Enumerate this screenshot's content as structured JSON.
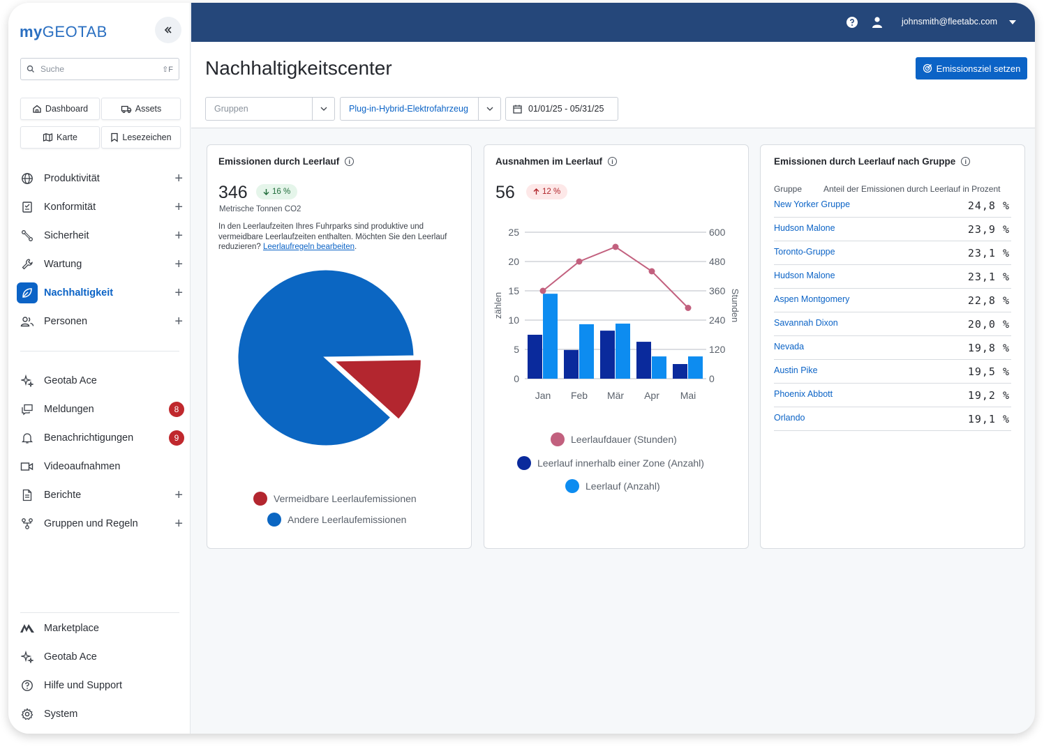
{
  "app": {
    "logo_my": "my",
    "logo_geotab": "GEOTAB",
    "search_placeholder": "Suche",
    "search_shortcut": "⇧F",
    "user_email": "johnsmith@fleetabc.com"
  },
  "quick_links": [
    {
      "label": "Dashboard",
      "icon": "home-icon"
    },
    {
      "label": "Assets",
      "icon": "truck-icon"
    },
    {
      "label": "Karte",
      "icon": "map-icon"
    },
    {
      "label": "Lesezeichen",
      "icon": "bookmark-icon"
    }
  ],
  "nav": {
    "main": [
      {
        "label": "Produktivität",
        "icon": "globe-icon",
        "expandable": true
      },
      {
        "label": "Konformität",
        "icon": "clipboard-icon",
        "expandable": true
      },
      {
        "label": "Sicherheit",
        "icon": "route-icon",
        "expandable": true
      },
      {
        "label": "Wartung",
        "icon": "wrench-icon",
        "expandable": true
      },
      {
        "label": "Nachhaltigkeit",
        "icon": "leaf-icon",
        "expandable": true,
        "active": true
      },
      {
        "label": "Personen",
        "icon": "people-icon",
        "expandable": true
      }
    ],
    "secondary": [
      {
        "label": "Geotab Ace",
        "icon": "sparkle-icon"
      },
      {
        "label": "Meldungen",
        "icon": "messages-icon",
        "badge": "8"
      },
      {
        "label": "Benachrichtigungen",
        "icon": "bell-icon",
        "badge": "9"
      },
      {
        "label": "Videoaufnahmen",
        "icon": "video-icon"
      },
      {
        "label": "Berichte",
        "icon": "document-icon",
        "expandable": true
      },
      {
        "label": "Gruppen und Regeln",
        "icon": "groups-icon",
        "expandable": true
      }
    ],
    "footer": [
      {
        "label": "Marketplace",
        "icon": "marketplace-icon"
      },
      {
        "label": "Geotab Ace",
        "icon": "sparkle-icon"
      },
      {
        "label": "Hilfe und Support",
        "icon": "help-icon"
      },
      {
        "label": "System",
        "icon": "gear-icon"
      }
    ]
  },
  "page": {
    "title": "Nachhaltigkeitscenter",
    "primary_button": "Emissionsziel setzen",
    "filters": {
      "groups_placeholder": "Gruppen",
      "vehicle_type": "Plug-in-Hybrid-Elektrofahrzeug",
      "date_range": "01/01/25 - 05/31/25"
    }
  },
  "cards": {
    "emissions": {
      "title": "Emissionen durch Leerlauf",
      "value": "346",
      "change": "16 %",
      "change_direction": "down",
      "unit": "Metrische Tonnen CO2",
      "description": "In den Leerlaufzeiten Ihres Fuhrparks sind produktive und vermeidbare Leerlaufzeiten enthalten. Möchten Sie den Leerlauf reduzieren?",
      "link": "Leerlaufregeln bearbeiten",
      "legend": [
        "Vermeidbare Leerlaufemissionen",
        "Andere Leerlaufemissionen"
      ]
    },
    "exceptions": {
      "title": "Ausnahmen im Leerlauf",
      "value": "56",
      "change": "12 %",
      "change_direction": "up",
      "legend": [
        "Leerlaufdauer (Stunden)",
        "Leerlauf innerhalb einer Zone (Anzahl)",
        "Leerlauf (Anzahl)"
      ]
    },
    "by_group": {
      "title": "Emissionen durch Leerlauf nach Gruppe",
      "col_group": "Gruppe",
      "col_share": "Anteil der Emissionen durch Leerlauf in Prozent",
      "rows": [
        {
          "name": "New Yorker Gruppe",
          "value": "24,8 %"
        },
        {
          "name": "Hudson Malone",
          "value": "23,9 %"
        },
        {
          "name": "Toronto-Gruppe",
          "value": "23,1 %"
        },
        {
          "name": "Hudson Malone",
          "value": "23,1 %"
        },
        {
          "name": "Aspen Montgomery",
          "value": "22,8 %"
        },
        {
          "name": "Savannah Dixon",
          "value": "20,0 %"
        },
        {
          "name": "Nevada",
          "value": "19,8 %"
        },
        {
          "name": "Austin Pike",
          "value": "19,5 %"
        },
        {
          "name": "Phoenix Abbott",
          "value": "19,2 %"
        },
        {
          "name": "Orlando",
          "value": "19,1 %"
        }
      ]
    }
  },
  "chart_data": [
    {
      "type": "pie",
      "labels": [
        "Vermeidbare Leerlaufemissionen",
        "Andere Leerlaufemissionen"
      ],
      "values": [
        12,
        88
      ],
      "colors": [
        "#b3262f",
        "#0b66c2"
      ]
    },
    {
      "type": "bar",
      "categories": [
        "Jan",
        "Feb",
        "Mär",
        "Apr",
        "Mai"
      ],
      "ylabel": "zählen",
      "y2label": "Stunden",
      "ylim": [
        0,
        25
      ],
      "y2lim": [
        0,
        600
      ],
      "yticks": [
        0,
        5,
        10,
        15,
        20,
        25
      ],
      "y2ticks": [
        0,
        120,
        240,
        360,
        480,
        600
      ],
      "series": [
        {
          "name": "Leerlauf innerhalb einer Zone (Anzahl)",
          "kind": "bar",
          "color": "#0a2a9c",
          "values": [
            7.5,
            4.9,
            8.2,
            6.3,
            2.5
          ]
        },
        {
          "name": "Leerlauf (Anzahl)",
          "kind": "bar",
          "color": "#0d8cf0",
          "values": [
            14.5,
            9.3,
            9.4,
            3.8,
            3.8
          ]
        },
        {
          "name": "Leerlaufdauer (Stunden)",
          "kind": "line",
          "axis": "y2",
          "color": "#c2607e",
          "values": [
            360,
            480,
            540,
            440,
            290
          ]
        }
      ]
    }
  ]
}
